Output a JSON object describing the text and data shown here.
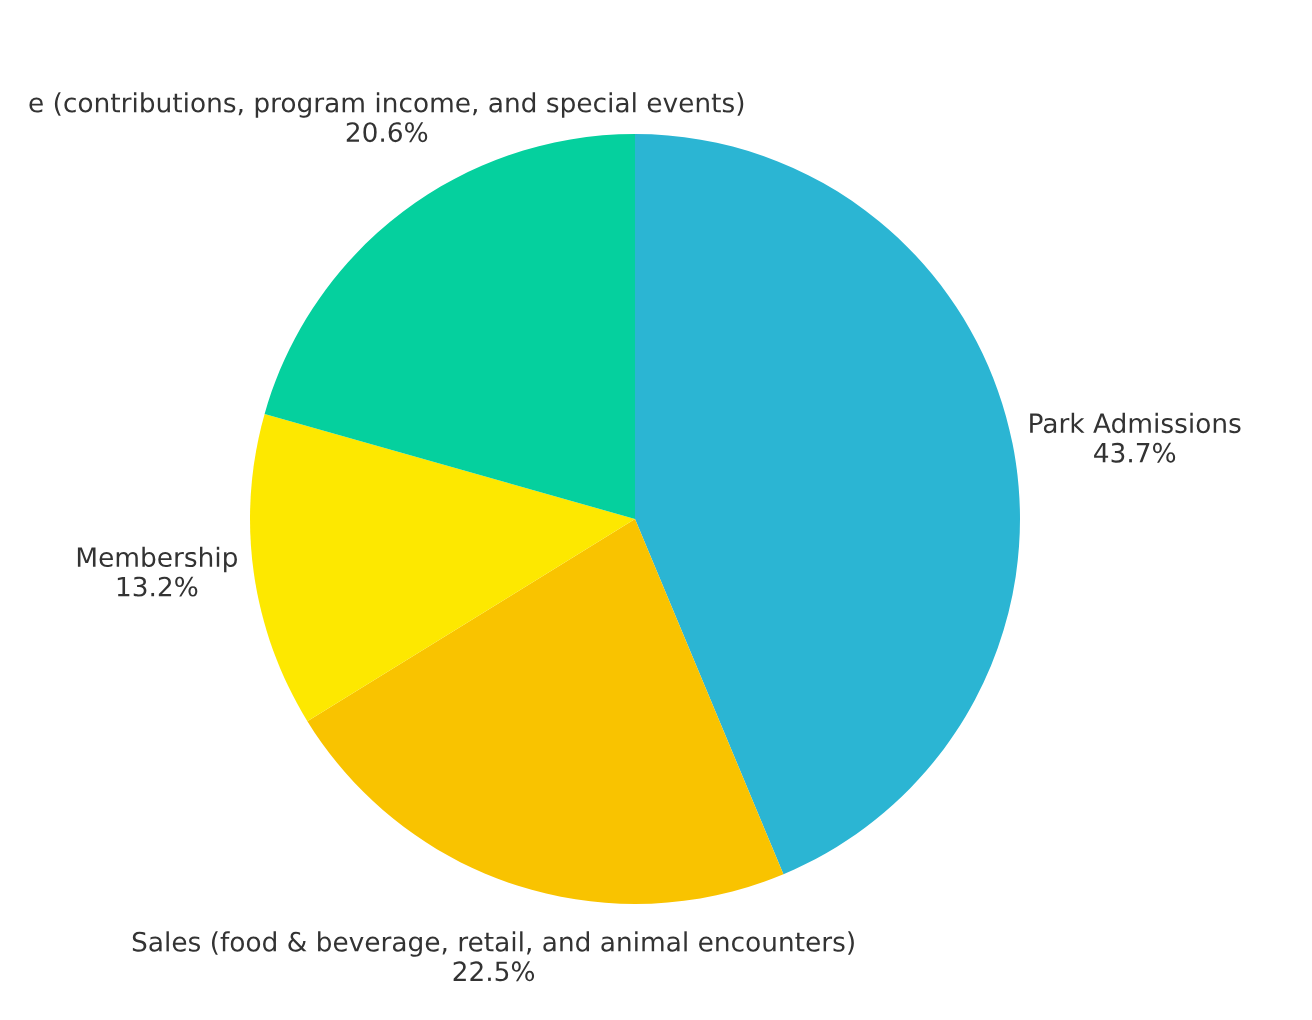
{
  "chart_data": {
    "type": "pie",
    "categories": [
      "Park Admissions",
      "Sales (food & beverage, retail, and animal encounters)",
      "Membership",
      "e (contributions, program income, and special events)"
    ],
    "values": [
      43.7,
      22.5,
      13.2,
      20.6
    ],
    "value_labels": [
      "43.7%",
      "22.5%",
      "13.2%",
      "20.6%"
    ],
    "colors": [
      "#2bb5d3",
      "#f9c300",
      "#fde800",
      "#05d09e"
    ],
    "legend": false
  }
}
